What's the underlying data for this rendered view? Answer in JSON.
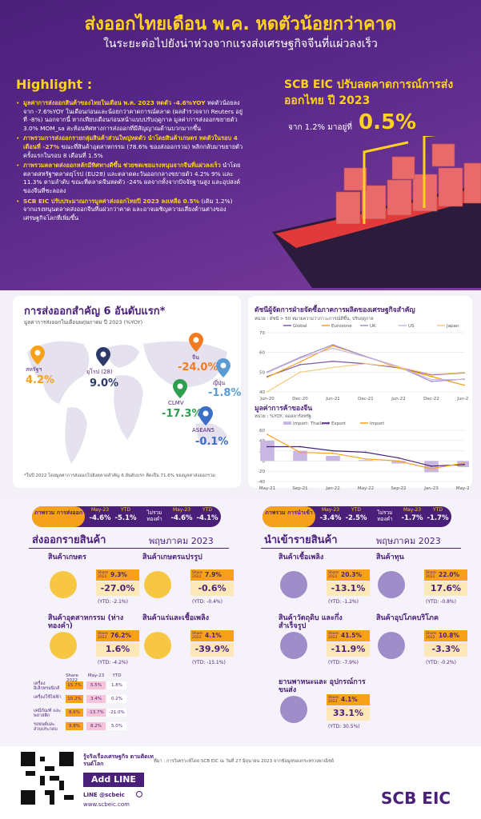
{
  "header": {
    "title": "ส่งออกไทยเดือน พ.ค. หดตัวน้อยกว่าคาด",
    "subtitle": "ในระยะต่อไปยังน่าห่วงจากแรงส่งเศรษฐกิจจีนที่แผ่วลงเร็ว"
  },
  "highlight": {
    "heading": "Highlight :",
    "items": [
      {
        "bold": "มูลค่าการส่งออกสินค้าของไทยในเดือน พ.ค. 2023 หดตัว -4.6%YOY",
        "text": " หดตัวน้อยลงจาก -7.6%YOY ในเดือนก่อนและน้อยกว่าคาดการณ์ตลาด (ผลสำรวจจาก Reuters อยู่ที่ -8%) นอกจากนี้ หากเทียบเดือนก่อนหน้าแบบปรับฤดูกาล มูลค่าการส่งออกขยายตัว 3.0% MOM_sa สะท้อนทิศทางการส่งออกที่มีสัญญาณด้านบวกมากขึ้น"
      },
      {
        "bold": "ภาพรวมการส่งออกรายกลุ่มสินค้าส่วนใหญ่หดตัว นำโดยสินค้าเกษตร หดตัวในรอบ 4 เดือนที่ -27%",
        "text": " ขณะที่สินค้าอุตสาหกรรม (78.6% ของส่งออกรวม) พลิกกลับมาขยายตัวครั้งแรกในรอบ 8 เดือนที่ 1.5%"
      },
      {
        "bold": "ภาพรวมตลาดส่งออกหลักมีทิศทางดีขึ้น ช่วยชดเชยแรงหนุนจากจีนที่แผ่วลงเร็ว",
        "text": " นำโดยตลาดสหรัฐฯตลาดยุโรป (EU28) และตลาดตะวันออกกลางขยายตัว 4.2% 9% และ 11.3% ตามลำดับ ขณะที่ตลาดจีนหดตัว -24% ผลจากทั้งจากปัจจัยฐานสูง และอุปสงค์ของจีนที่ชะลอลง"
      },
      {
        "bold": "SCB EIC ปรับประมาณการมูลค่าส่งออกไทยปี 2023 ลงเหลือ 0.5%",
        "text": " (เดิม 1.2%) จากแรงหนุนตลาดส่งออกจีนที่แผ่วกว่าคาด และอาจเผชิญความเสี่ยงด้านต่างของเศรษฐกิจโลกที่เพิ่มขึ้น"
      }
    ]
  },
  "forecast": {
    "title": "SCB EIC ปรับลดคาดการณ์การส่งออกไทย ปี 2023",
    "from": "จาก 1.2% มาอยู่ที่",
    "value": "0.5%"
  },
  "top_markets": {
    "title": "การส่งออกสำคัญ 6 อันดับแรก*",
    "subtitle": "มูลค่าการส่งออกในเดือนพฤษภาคม ปี 2023 (%YOY)",
    "markets": [
      {
        "name": "สหรัฐฯ",
        "value": "4.2%",
        "color": "#f7a11a"
      },
      {
        "name": "ยุโรป (28)",
        "value": "9.0%",
        "color": "#2b3a6b"
      },
      {
        "name": "จีน",
        "value": "-24.0%",
        "color": "#f07b22"
      },
      {
        "name": "ญี่ปุ่น",
        "value": "-1.8%",
        "color": "#5b9bd5"
      },
      {
        "name": "CLMV",
        "value": "-17.3%",
        "color": "#2e9e4f"
      },
      {
        "name": "ASEAN5",
        "value": "-0.1%",
        "color": "#3b6fc4"
      }
    ],
    "note": "*ในปี 2022 โดยมูลค่าการส่งออกไปยังตลาดสำคัญ 6 อันดับแรก คิดเป็น 71.6% ของมูลค่าส่งออกรวม"
  },
  "chart_data": [
    {
      "type": "line",
      "title": "ดัชนีผู้จัดการฝ่ายจัดซื้อภาคการผลิตของเศรษฐกิจสำคัญ",
      "ylabel": "หน่วย : ดัชนี > 50 หมายความว่าภาวะการณ์ดีขึ้น, ปรับฤดูกาล",
      "x": [
        "Jun-20",
        "Dec-20",
        "Jun-21",
        "Dec-21",
        "Jun-22",
        "Dec-22",
        "Jun-23"
      ],
      "ylim": [
        40,
        70
      ],
      "yticks": [
        40,
        50,
        60,
        70
      ],
      "legend": "top",
      "series": [
        {
          "name": "Global",
          "color": "#7a5aa8",
          "values": [
            47.8,
            53.8,
            55.5,
            54.3,
            52.2,
            48.6,
            49.6
          ]
        },
        {
          "name": "Eurozone",
          "color": "#f7a11a",
          "values": [
            47.4,
            55.2,
            63.4,
            58.0,
            52.1,
            47.8,
            43.4
          ]
        },
        {
          "name": "UK",
          "color": "#9e8dc9",
          "values": [
            50.1,
            57.5,
            63.9,
            57.9,
            52.8,
            45.3,
            46.5
          ]
        },
        {
          "name": "US",
          "color": "#c9b7e3",
          "values": [
            49.8,
            57.1,
            62.1,
            57.7,
            52.7,
            46.2,
            46.3
          ]
        },
        {
          "name": "Japan",
          "color": "#f5c97a",
          "values": [
            40.1,
            50.0,
            52.4,
            54.3,
            52.7,
            48.9,
            49.8
          ]
        }
      ]
    },
    {
      "type": "bar",
      "title": "มูลค่าการค้าของจีน",
      "ylabel": "หน่วย : %YOY, ดอลลาร์สหรัฐ",
      "x": [
        "May-21",
        "Sep-21",
        "Jan-22",
        "May-22",
        "Sep-22",
        "Jan-23",
        "May-23"
      ],
      "ylim": [
        -40,
        60
      ],
      "yticks": [
        -40,
        -20,
        0,
        20,
        40,
        60
      ],
      "legend": "top",
      "series": [
        {
          "name": "Import: Thailand",
          "color": "#c9b7e3",
          "type": "bar",
          "values": [
            40,
            20,
            10,
            2,
            -5,
            -22,
            -12
          ]
        },
        {
          "name": "Export",
          "color": "#4a1f7a",
          "type": "line",
          "values": [
            28,
            28,
            20,
            17,
            6,
            -10,
            -7
          ]
        },
        {
          "name": "Import",
          "color": "#f7a11a",
          "type": "line",
          "values": [
            52,
            17,
            15,
            4,
            0,
            -15,
            -4
          ]
        }
      ]
    }
  ],
  "export_summary": {
    "total_label": "ภาพรวม การส่งออก",
    "total_may_h": "May-23",
    "total_may": "-4.6%",
    "total_ytd_h": "YTD",
    "total_ytd": "-5.1%",
    "excl_label": "ไม่รวม ทองคำ",
    "excl_may_h": "May-23",
    "excl_may": "-4.6%",
    "excl_ytd_h": "YTD",
    "excl_ytd": "-4.1%"
  },
  "import_summary": {
    "total_label": "ภาพรวม การนำเข้า",
    "total_may_h": "May-23",
    "total_may": "-3.4%",
    "total_ytd_h": "YTD",
    "total_ytd": "-2.5%",
    "excl_label": "ไม่รวม ทองคำ",
    "excl_may_h": "May-23",
    "excl_may": "-1.7%",
    "excl_ytd_h": "YTD",
    "excl_ytd": "-1.7%"
  },
  "exports": {
    "title": "ส่งออกรายสินค้า",
    "month": "พฤษภาคม 2023",
    "share_label": "Share 2022",
    "categories": [
      {
        "name": "สินค้าเกษตร",
        "share": "9.3%",
        "change": "-27.0%",
        "ytd": "(YTD: -2.1%)"
      },
      {
        "name": "สินค้าเกษตรแปรรูป",
        "share": "7.9%",
        "change": "-0.6%",
        "ytd": "(YTD: -0.4%)"
      },
      {
        "name": "สินค้าอุตสาหกรรม (ห่างทองคำ)",
        "share": "76.2%",
        "change": "1.6%",
        "ytd": "(YTD: -4.2%)"
      },
      {
        "name": "สินค้าแร่และเชื้อเพลิง",
        "share": "4.1%",
        "change": "-39.9%",
        "ytd": "(YTD: -15.1%)"
      }
    ],
    "industry_table": {
      "headers": [
        "Share 2022",
        "May-23",
        "YTD"
      ],
      "rows": [
        {
          "name": "เครื่อง อิเล็กทรอนิกส์",
          "share": "15.7%",
          "may": "5.5%",
          "ytd": "1.8%"
        },
        {
          "name": "เครื่องใช้ไฟฟ้า",
          "share": "10.2%",
          "may": "3.4%",
          "ytd": "0.2%"
        },
        {
          "name": "เคมีภัณฑ์ และพลาสติก",
          "share": "8.6%",
          "may": "-13.7%",
          "ytd": "-21.0%"
        },
        {
          "name": "รถยนต์และ ส่วนประกอบ",
          "share": "9.8%",
          "may": "8.2%",
          "ytd": "5.0%"
        }
      ]
    }
  },
  "imports": {
    "title": "นำเข้ารายสินค้า",
    "month": "พฤษภาคม 2023",
    "share_label": "Share 2022",
    "categories": [
      {
        "name": "สินค้าเชื้อเพลิง",
        "share": "20.3%",
        "change": "-13.1%",
        "ytd": "(YTD: -1.2%)"
      },
      {
        "name": "สินค้าทุน",
        "share": "22.0%",
        "change": "17.6%",
        "ytd": "(YTD: -0.8%)"
      },
      {
        "name": "สินค้าวัตถุดิบ และกึ่งสำเร็จรูป",
        "share": "41.5%",
        "change": "-11.9%",
        "ytd": "(YTD: -7.9%)"
      },
      {
        "name": "สินค้าอุปโภคบริโภค",
        "share": "10.8%",
        "change": "-3.3%",
        "ytd": "(YTD: -0.2%)"
      },
      {
        "name": "ยานพาหนะและ อุปกรณ์การขนส่ง",
        "share": "4.1%",
        "change": "33.1%",
        "ytd": "(YTD: 30.5%)"
      }
    ]
  },
  "footer": {
    "qr_caption": "รู้จริงเรื่องเศรษฐกิจ ตามติดเทรนด์โลก",
    "add_line": "Add LINE",
    "line_id": "LINE @scbeic",
    "website": "www.scbeic.com",
    "source": "ที่มา : การวิเคราะห์โดย SCB EIC ณ วันที่ 27 มิถุนายน 2023 จากข้อมูลของกระทรวงพาณิชย์",
    "logo": "SCB EIC"
  }
}
